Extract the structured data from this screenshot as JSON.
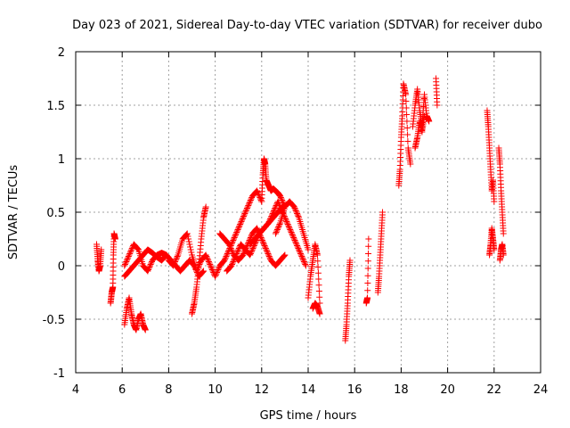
{
  "chart_data": {
    "type": "scatter",
    "title": "Day 023 of 2021, Sidereal Day-to-day VTEC variation (SDTVAR) for receiver dubo",
    "xlabel": "GPS time / hours",
    "ylabel": "SDTVAR / TECUs",
    "xlim": [
      4,
      24
    ],
    "ylim": [
      -1,
      2
    ],
    "xticks": [
      "4",
      "6",
      "8",
      "10",
      "12",
      "14",
      "16",
      "18",
      "20",
      "22",
      "24"
    ],
    "yticks": [
      "-1",
      "-0.5",
      "0",
      "0.5",
      "1",
      "1.5",
      "2"
    ],
    "grid": true,
    "marker": "+",
    "color": "#ff0000",
    "series": [
      {
        "name": "SDTVAR",
        "segments": [
          {
            "x": [
              4.9,
              4.95,
              5.0,
              5.05,
              5.1
            ],
            "y": [
              0.2,
              0.05,
              -0.05,
              0.0,
              0.15
            ]
          },
          {
            "x": [
              5.5,
              5.55,
              5.6,
              5.62,
              5.65,
              5.7
            ],
            "y": [
              -0.35,
              -0.25,
              -0.2,
              0.1,
              0.3,
              0.25
            ]
          },
          {
            "x": [
              6.1,
              6.2,
              6.3,
              6.4,
              6.5,
              6.6,
              6.7,
              6.8,
              6.9,
              7.0
            ],
            "y": [
              -0.55,
              -0.4,
              -0.3,
              -0.45,
              -0.55,
              -0.6,
              -0.5,
              -0.45,
              -0.55,
              -0.6
            ]
          },
          {
            "x": [
              6.1,
              6.3,
              6.5,
              6.7,
              6.9,
              7.1,
              7.3,
              7.5,
              7.7,
              7.9,
              8.1,
              8.3,
              8.5
            ],
            "y": [
              0.0,
              0.1,
              0.2,
              0.15,
              0.0,
              -0.05,
              0.05,
              0.1,
              0.12,
              0.1,
              0.05,
              0.0,
              -0.05
            ]
          },
          {
            "x": [
              6.1,
              6.3,
              6.5,
              6.7,
              6.9,
              7.1,
              7.3,
              7.5,
              7.7,
              7.9
            ],
            "y": [
              -0.1,
              -0.05,
              0.0,
              0.05,
              0.1,
              0.15,
              0.12,
              0.08,
              0.05,
              0.1
            ]
          },
          {
            "x": [
              8.0,
              8.2,
              8.4,
              8.6,
              8.8,
              9.0,
              9.2,
              9.4,
              9.6,
              9.8,
              10.0
            ],
            "y": [
              0.05,
              0.0,
              0.1,
              0.25,
              0.3,
              0.1,
              -0.05,
              0.05,
              0.1,
              0.0,
              -0.1
            ]
          },
          {
            "x": [
              8.5,
              8.7,
              8.9,
              9.1,
              9.3,
              9.5
            ],
            "y": [
              -0.05,
              0.0,
              0.05,
              0.0,
              -0.1,
              -0.05
            ]
          },
          {
            "x": [
              9.0,
              9.1,
              9.2,
              9.3,
              9.4,
              9.5,
              9.6
            ],
            "y": [
              -0.45,
              -0.35,
              -0.2,
              0.0,
              0.25,
              0.45,
              0.55
            ]
          },
          {
            "x": [
              10.0,
              10.2,
              10.4,
              10.6,
              10.8,
              11.0,
              11.2,
              11.4,
              11.6,
              11.8,
              12.0
            ],
            "y": [
              -0.1,
              0.0,
              0.05,
              0.15,
              0.25,
              0.35,
              0.45,
              0.55,
              0.65,
              0.7,
              0.6
            ]
          },
          {
            "x": [
              10.2,
              10.4,
              10.6,
              10.8,
              11.0,
              11.2,
              11.4,
              11.6,
              11.8,
              12.0,
              12.2,
              12.4,
              12.6,
              12.8,
              13.0
            ],
            "y": [
              0.3,
              0.25,
              0.2,
              0.1,
              0.05,
              0.1,
              0.2,
              0.3,
              0.35,
              0.25,
              0.15,
              0.05,
              0.0,
              0.05,
              0.1
            ]
          },
          {
            "x": [
              10.5,
              10.7,
              10.9,
              11.1,
              11.3,
              11.5,
              11.7,
              11.9,
              12.1,
              12.3,
              12.5,
              12.7,
              12.9
            ],
            "y": [
              -0.05,
              0.0,
              0.1,
              0.2,
              0.15,
              0.1,
              0.2,
              0.3,
              0.35,
              0.4,
              0.45,
              0.5,
              0.55
            ]
          },
          {
            "x": [
              11.5,
              11.7,
              11.9,
              12.1,
              12.3,
              12.5,
              12.7,
              12.9,
              13.1,
              13.3,
              13.5,
              13.7,
              13.9
            ],
            "y": [
              0.2,
              0.25,
              0.3,
              0.35,
              0.4,
              0.5,
              0.6,
              0.5,
              0.4,
              0.3,
              0.2,
              0.1,
              0.0
            ]
          },
          {
            "x": [
              12.0,
              12.05,
              12.1,
              12.15,
              12.2,
              12.3,
              12.4,
              12.5,
              12.6,
              12.7,
              12.8,
              13.0
            ],
            "y": [
              0.6,
              0.85,
              1.0,
              0.95,
              0.8,
              0.75,
              0.7,
              0.72,
              0.7,
              0.68,
              0.65,
              0.55
            ]
          },
          {
            "x": [
              12.6,
              12.8,
              13.0,
              13.2,
              13.4,
              13.6,
              13.8,
              14.0
            ],
            "y": [
              0.3,
              0.4,
              0.55,
              0.6,
              0.55,
              0.45,
              0.3,
              0.15
            ]
          },
          {
            "x": [
              14.0,
              14.1,
              14.2,
              14.3,
              14.4,
              14.5
            ],
            "y": [
              -0.3,
              -0.1,
              0.05,
              0.2,
              0.1,
              -0.35
            ]
          },
          {
            "x": [
              14.2,
              14.3,
              14.4,
              14.5
            ],
            "y": [
              -0.4,
              -0.35,
              -0.38,
              -0.45
            ]
          },
          {
            "x": [
              15.6,
              15.65,
              15.7,
              15.75,
              15.8
            ],
            "y": [
              -0.7,
              -0.55,
              -0.35,
              -0.1,
              0.05
            ]
          },
          {
            "x": [
              16.5,
              16.55,
              16.6
            ],
            "y": [
              -0.35,
              -0.3,
              0.25
            ]
          },
          {
            "x": [
              17.0,
              17.05,
              17.1,
              17.15,
              17.2
            ],
            "y": [
              -0.25,
              -0.1,
              0.1,
              0.3,
              0.5
            ]
          },
          {
            "x": [
              17.9,
              17.95,
              18.0,
              18.05,
              18.1,
              18.2,
              18.3,
              18.4
            ],
            "y": [
              0.75,
              0.9,
              1.2,
              1.4,
              1.7,
              1.6,
              1.1,
              0.95
            ]
          },
          {
            "x": [
              18.5,
              18.6,
              18.7,
              18.8,
              18.9,
              19.0,
              19.1,
              19.2
            ],
            "y": [
              1.3,
              1.5,
              1.65,
              1.45,
              1.3,
              1.6,
              1.4,
              1.35
            ]
          },
          {
            "x": [
              18.6,
              18.7,
              18.8,
              18.9,
              19.0
            ],
            "y": [
              1.1,
              1.2,
              1.35,
              1.25,
              1.4
            ]
          },
          {
            "x": [
              19.5,
              19.55
            ],
            "y": [
              1.75,
              1.5
            ]
          },
          {
            "x": [
              21.7,
              21.75,
              21.8,
              21.85,
              21.9,
              21.95,
              22.0
            ],
            "y": [
              1.45,
              1.3,
              1.1,
              0.9,
              0.7,
              0.8,
              0.6
            ]
          },
          {
            "x": [
              21.8,
              21.85,
              21.9,
              21.95,
              22.0
            ],
            "y": [
              0.1,
              0.2,
              0.35,
              0.25,
              0.15
            ]
          },
          {
            "x": [
              22.2,
              22.25,
              22.3,
              22.35,
              22.4
            ],
            "y": [
              1.1,
              0.95,
              0.7,
              0.5,
              0.3
            ]
          },
          {
            "x": [
              22.25,
              22.3,
              22.35,
              22.4
            ],
            "y": [
              0.05,
              0.15,
              0.2,
              0.1
            ]
          }
        ]
      }
    ]
  }
}
